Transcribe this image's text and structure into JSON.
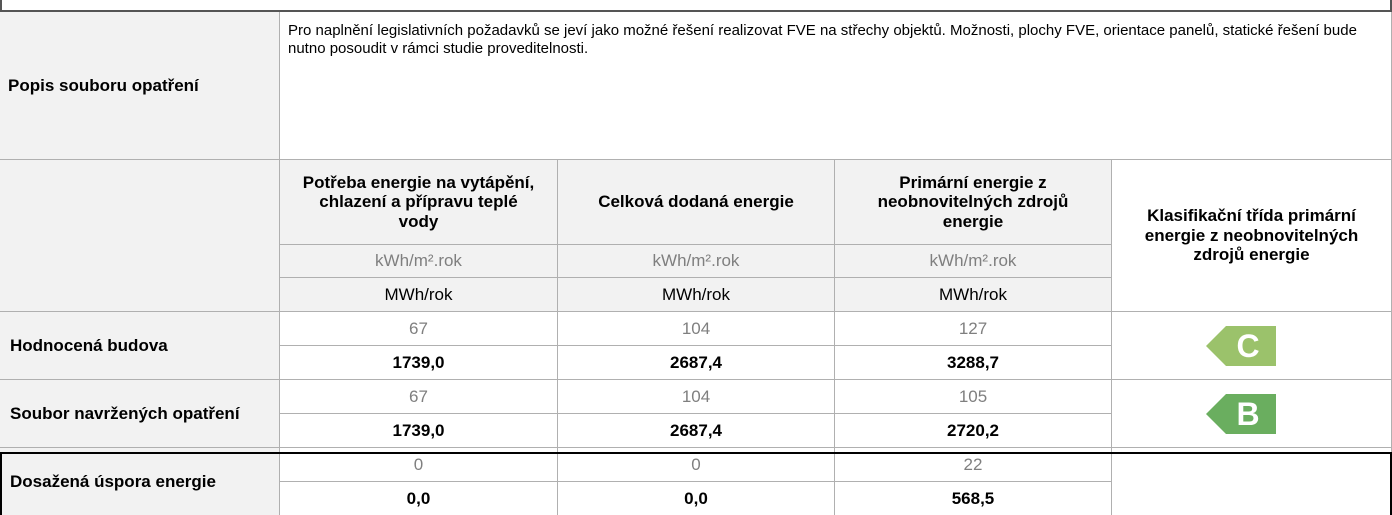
{
  "description": {
    "label": "Popis souboru opatření",
    "text": "Pro naplnění legislativních požadavků se jeví jako možné řešení realizovat FVE na střechy objektů. Možnosti, plochy FVE, orientace panelů, statické řešení bude nutno posoudit v rámci studie proveditelnosti."
  },
  "table": {
    "columns": [
      "Potřeba energie na vytápění, chlazení a přípravu teplé vody",
      "Celková dodaná energie",
      "Primární energie z neobnovitelných zdrojů energie"
    ],
    "class_header": "Klasifikační třída primární energie z neobnovitelných zdrojů energie",
    "units": [
      "kWh/m².rok",
      "MWh/rok"
    ],
    "rows": [
      {
        "label": "Hodnocená budova",
        "specific": [
          "67",
          "104",
          "127"
        ],
        "total": [
          "1739,0",
          "2687,4",
          "3288,7"
        ],
        "class": "C",
        "class_color": "#9bc26b"
      },
      {
        "label": "Soubor navržených opatření",
        "specific": [
          "67",
          "104",
          "105"
        ],
        "total": [
          "1739,0",
          "2687,4",
          "2720,2"
        ],
        "class": "B",
        "class_color": "#6aae5f"
      },
      {
        "label": "Dosažená úspora energie",
        "specific": [
          "0",
          "0",
          "22"
        ],
        "total": [
          "0,0",
          "0,0",
          "568,5"
        ]
      }
    ]
  }
}
